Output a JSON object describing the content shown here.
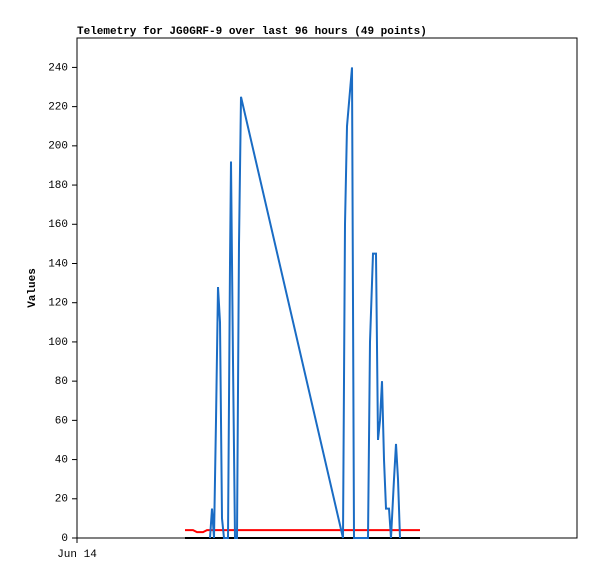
{
  "chart_data": {
    "type": "line",
    "title": "Telemetry for JG0GRF-9 over last 96 hours (49 points)",
    "y_label": "Values",
    "xlim": [
      0,
      100
    ],
    "xticks": [
      {
        "value": 0,
        "label": "Jun 14"
      }
    ],
    "ylim": [
      0,
      255
    ],
    "yticks": [
      0,
      20,
      40,
      60,
      80,
      100,
      120,
      140,
      160,
      180,
      200,
      220,
      240
    ],
    "grid": false,
    "series": [
      {
        "color": "#000000",
        "x": [
          21.6,
          68.6
        ],
        "values": [
          0,
          0
        ]
      },
      {
        "color": "#ff0000",
        "x": [
          21.6,
          23.2,
          24,
          25.2,
          26,
          68.6
        ],
        "values": [
          4,
          4,
          3,
          3,
          4,
          4
        ]
      },
      {
        "color": "#1a6cc4",
        "x": [
          26.6,
          27,
          27.4,
          27.8,
          28.2,
          28.6,
          29,
          29.4,
          30.2,
          30.6,
          30.8,
          31.2,
          31.6,
          32,
          32.4,
          32.8,
          53.2,
          53.6,
          54,
          55,
          55.4,
          58.2,
          58.6,
          59.2,
          59.8,
          60.2,
          60.6,
          61,
          61.4,
          61.8,
          62.4,
          62.8,
          63.4,
          63.8,
          64.2,
          64.6
        ],
        "values": [
          0,
          15,
          0,
          60,
          128,
          110,
          10,
          0,
          0,
          140,
          192,
          90,
          0,
          0,
          150,
          225,
          0,
          160,
          210,
          240,
          0,
          0,
          100,
          145,
          145,
          50,
          60,
          80,
          40,
          15,
          15,
          0,
          30,
          48,
          30,
          0
        ]
      }
    ]
  }
}
